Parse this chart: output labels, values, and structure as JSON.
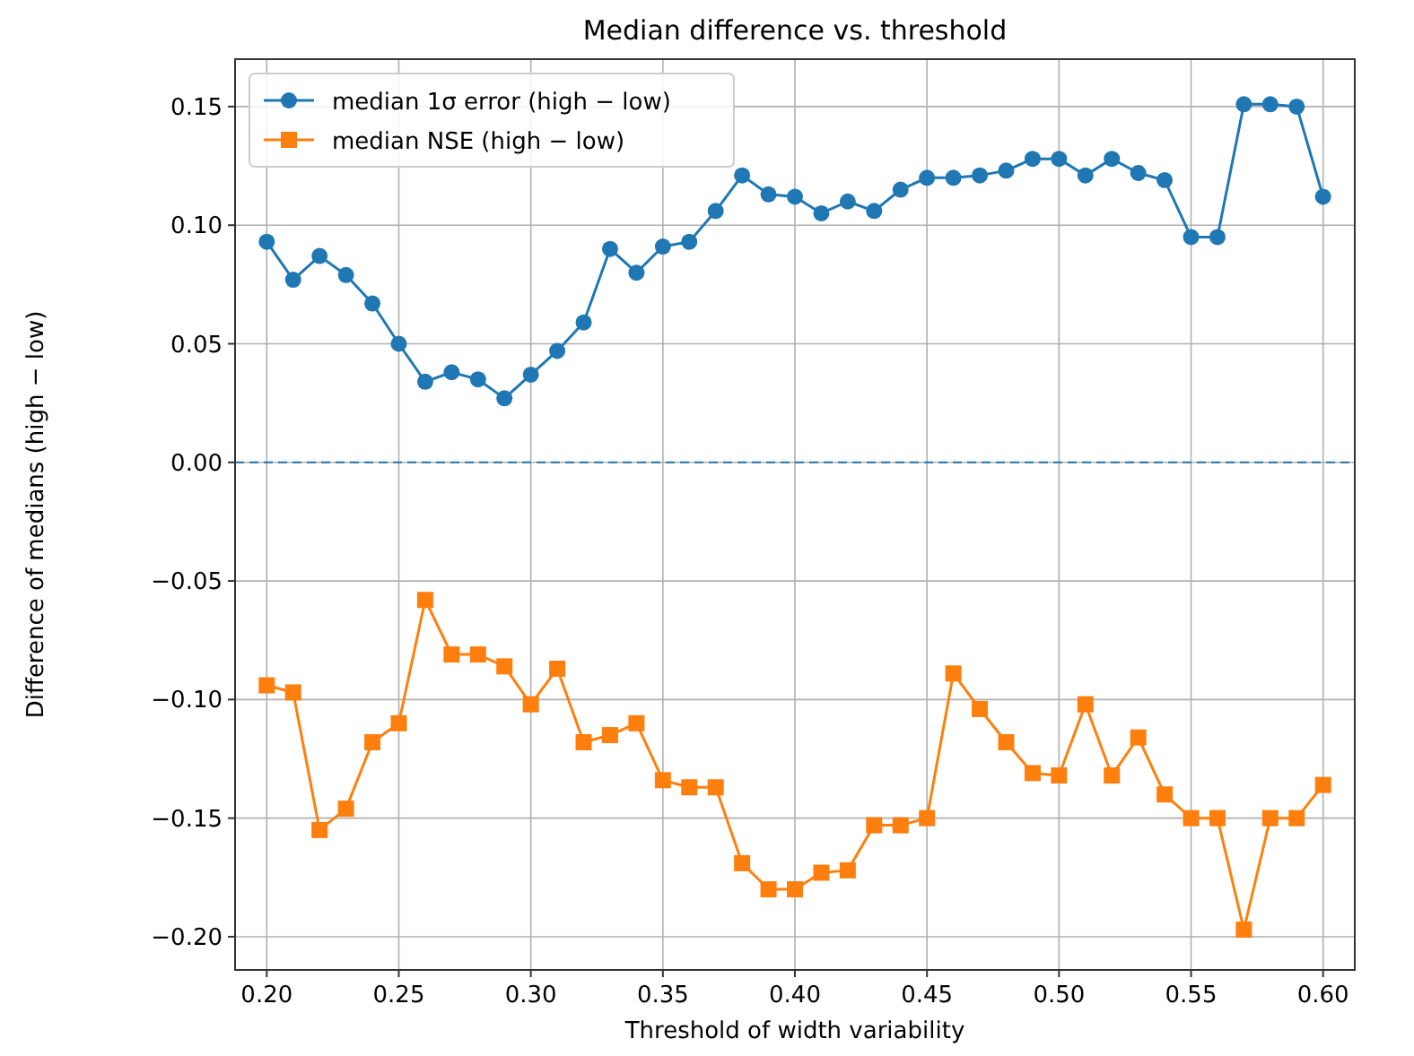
{
  "chart_data": {
    "type": "line",
    "title": "Median difference vs. threshold",
    "xlabel": "Threshold of width variability",
    "ylabel": "Difference of medians (high − low)",
    "x": [
      0.2,
      0.21,
      0.22,
      0.23,
      0.24,
      0.25,
      0.26,
      0.27,
      0.28,
      0.29,
      0.3,
      0.31,
      0.32,
      0.33,
      0.34,
      0.35,
      0.36,
      0.37,
      0.38,
      0.39,
      0.4,
      0.41,
      0.42,
      0.43,
      0.44,
      0.45,
      0.46,
      0.47,
      0.48,
      0.49,
      0.5,
      0.51,
      0.52,
      0.53,
      0.54,
      0.55,
      0.56,
      0.57,
      0.58,
      0.59,
      0.6
    ],
    "series": [
      {
        "name": "median 1σ error (high − low)",
        "color": "#1f77b4",
        "marker": "circle",
        "values": [
          0.093,
          0.077,
          0.087,
          0.079,
          0.067,
          0.05,
          0.034,
          0.038,
          0.035,
          0.027,
          0.037,
          0.047,
          0.059,
          0.09,
          0.08,
          0.091,
          0.093,
          0.106,
          0.121,
          0.113,
          0.112,
          0.105,
          0.11,
          0.106,
          0.115,
          0.12,
          0.12,
          0.121,
          0.123,
          0.128,
          0.128,
          0.121,
          0.128,
          0.122,
          0.119,
          0.095,
          0.095,
          0.151,
          0.151,
          0.15,
          0.112
        ]
      },
      {
        "name": "median NSE (high − low)",
        "color": "#ff7f0e",
        "marker": "square",
        "values": [
          -0.094,
          -0.097,
          -0.155,
          -0.146,
          -0.118,
          -0.11,
          -0.058,
          -0.081,
          -0.081,
          -0.086,
          -0.102,
          -0.087,
          -0.118,
          -0.115,
          -0.11,
          -0.134,
          -0.137,
          -0.137,
          -0.169,
          -0.18,
          -0.18,
          -0.173,
          -0.172,
          -0.153,
          -0.153,
          -0.15,
          -0.089,
          -0.104,
          -0.118,
          -0.131,
          -0.132,
          -0.102,
          -0.132,
          -0.116,
          -0.14,
          -0.15,
          -0.15,
          -0.197,
          -0.15,
          -0.15,
          -0.136
        ]
      }
    ],
    "xlim": [
      0.188,
      0.612
    ],
    "xticks": [
      {
        "value": 0.2,
        "label": "0.20"
      },
      {
        "value": 0.25,
        "label": "0.25"
      },
      {
        "value": 0.3,
        "label": "0.30"
      },
      {
        "value": 0.35,
        "label": "0.35"
      },
      {
        "value": 0.4,
        "label": "0.40"
      },
      {
        "value": 0.45,
        "label": "0.45"
      },
      {
        "value": 0.5,
        "label": "0.50"
      },
      {
        "value": 0.55,
        "label": "0.55"
      },
      {
        "value": 0.6,
        "label": "0.60"
      }
    ],
    "ylim": [
      -0.214,
      0.17
    ],
    "yticks": [
      {
        "value": -0.2,
        "label": "−0.20"
      },
      {
        "value": -0.15,
        "label": "−0.15"
      },
      {
        "value": -0.1,
        "label": "−0.10"
      },
      {
        "value": -0.05,
        "label": "−0.05"
      },
      {
        "value": 0,
        "label": "0.00"
      },
      {
        "value": 0.05,
        "label": "0.05"
      },
      {
        "value": 0.1,
        "label": "0.10"
      },
      {
        "value": 0.15,
        "label": "0.15"
      }
    ],
    "ref_lines": [
      {
        "axis": "y",
        "value": 0,
        "color": "#1f77b4",
        "line_style": "dashed"
      }
    ],
    "grid": true,
    "legend": "top left"
  }
}
